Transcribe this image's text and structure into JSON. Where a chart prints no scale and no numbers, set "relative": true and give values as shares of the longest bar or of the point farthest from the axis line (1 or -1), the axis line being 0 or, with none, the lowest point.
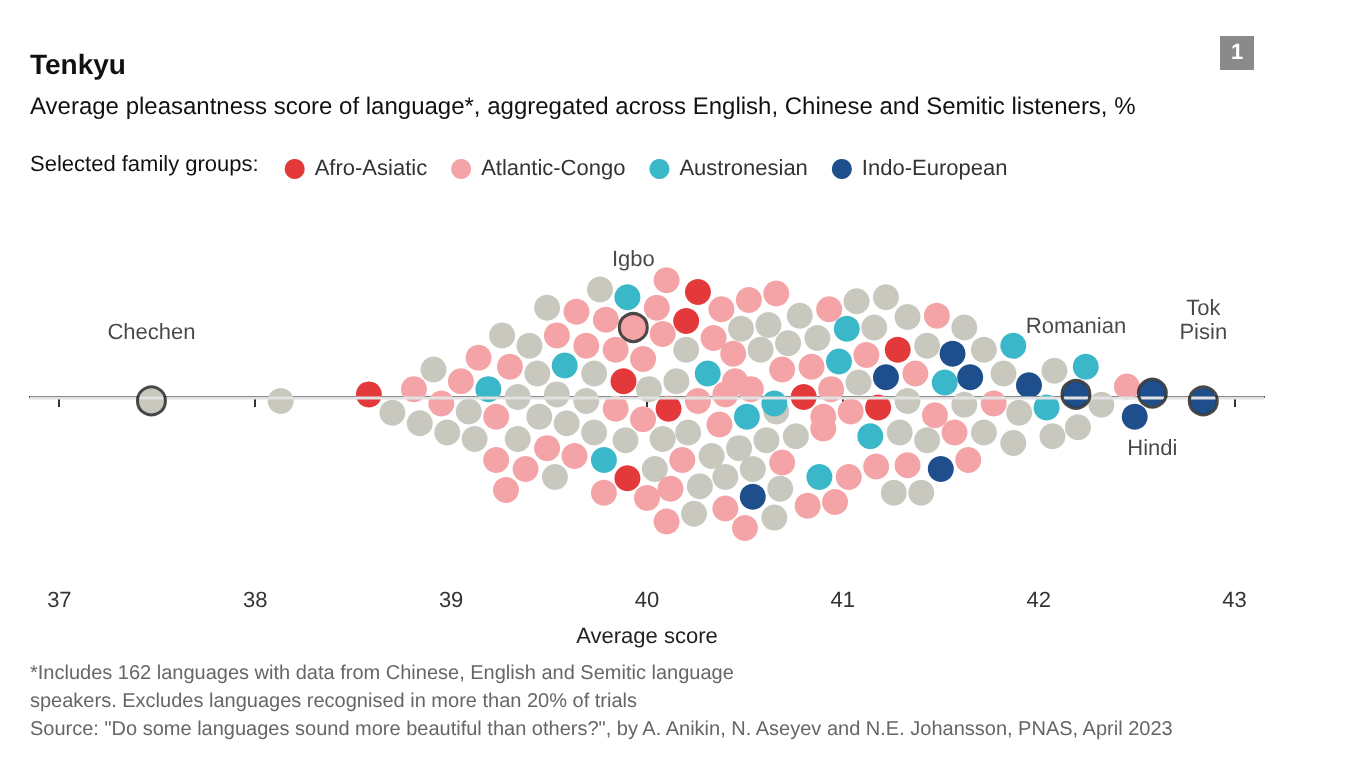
{
  "chart_data": {
    "type": "scatter",
    "title": "Tenkyu",
    "subtitle": "Average pleasantness score of language*, aggregated across English, Chinese and Semitic listeners, %",
    "legend_title": "Selected family groups:",
    "xlabel": "Average score",
    "relative": true,
    "marker": "circle",
    "legend": "top left",
    "grid": false,
    "xlim": [
      36.85,
      43.15
    ],
    "xticks": [
      37,
      38,
      39,
      40,
      41,
      42,
      43
    ],
    "ref_lines": [
      {
        "axis": "y",
        "value": 0,
        "color": "#e2e2e2"
      }
    ],
    "series": [
      {
        "color": "#c9c8bf",
        "x": [
          37.47,
          38.13,
          39.76,
          39.49,
          39.26,
          39.4,
          38.91,
          39.44,
          39.73,
          40.01,
          39.34,
          39.54,
          39.69,
          38.7,
          39.09,
          39.45,
          39.59,
          39.73,
          39.89,
          40.08,
          38.84,
          38.98,
          39.12,
          39.34,
          40.04,
          39.53,
          40.48,
          40.62,
          40.78,
          41.07,
          41.22,
          40.2,
          40.58,
          40.72,
          40.87,
          41.16,
          41.33,
          41.62,
          40.15,
          41.43,
          41.08,
          40.66,
          41.33,
          41.62,
          40.21,
          40.33,
          40.47,
          40.61,
          40.76,
          41.29,
          41.43,
          40.27,
          40.4,
          40.54,
          40.24,
          40.68,
          41.26,
          41.4,
          40.65,
          41.72,
          41.82,
          42.08,
          41.9,
          42.32,
          42.2,
          42.07,
          41.87,
          41.72
        ],
        "values": [
          -0.03,
          -0.03,
          0.82,
          0.68,
          0.47,
          0.39,
          0.21,
          0.18,
          0.18,
          0.06,
          0,
          0.02,
          -0.03,
          -0.12,
          -0.11,
          -0.15,
          -0.2,
          -0.27,
          -0.33,
          -0.32,
          -0.2,
          -0.27,
          -0.32,
          -0.32,
          -0.55,
          -0.61,
          0.52,
          0.55,
          0.62,
          0.73,
          0.76,
          0.36,
          0.36,
          0.41,
          0.45,
          0.53,
          0.61,
          0.53,
          0.12,
          0.39,
          0.11,
          -0.11,
          -0.03,
          -0.06,
          -0.27,
          -0.45,
          -0.39,
          -0.33,
          -0.3,
          -0.27,
          -0.33,
          -0.68,
          -0.61,
          -0.55,
          -0.89,
          -0.7,
          -0.73,
          -0.73,
          -0.92,
          0.36,
          0.18,
          0.2,
          -0.12,
          -0.06,
          -0.23,
          -0.3,
          -0.35,
          -0.27
        ]
      },
      {
        "name": "Afro-Asiatic",
        "color": "#e3393b",
        "x": [
          38.58,
          39.88,
          40.11,
          39.9,
          40.26,
          40.2,
          41.28,
          40.8,
          41.18
        ],
        "values": [
          0.02,
          0.12,
          -0.09,
          -0.62,
          0.8,
          0.58,
          0.36,
          0,
          -0.08
        ]
      },
      {
        "name": "Atlantic-Congo",
        "color": "#f4a3a6",
        "x": [
          40.1,
          39.64,
          39.79,
          39.93,
          40.05,
          40.08,
          39.54,
          39.69,
          39.84,
          39.98,
          39.14,
          39.3,
          38.81,
          39.05,
          39.84,
          39.98,
          38.95,
          39.23,
          39.49,
          39.63,
          39.23,
          39.38,
          39.78,
          40.0,
          40.1,
          39.28,
          40.38,
          40.52,
          40.66,
          40.34,
          40.93,
          40.44,
          41.48,
          40.45,
          40.69,
          40.84,
          41.12,
          40.26,
          40.4,
          40.53,
          40.94,
          41.37,
          40.37,
          40.9,
          41.04,
          41.47,
          40.18,
          40.9,
          41.57,
          40.12,
          40.69,
          41.03,
          41.17,
          41.33,
          41.64,
          40.4,
          40.82,
          40.96,
          40.5,
          41.77,
          42.45
        ],
        "values": [
          0.89,
          0.65,
          0.59,
          0.53,
          0.68,
          0.48,
          0.47,
          0.39,
          0.36,
          0.29,
          0.3,
          0.23,
          0.06,
          0.12,
          -0.09,
          -0.17,
          -0.05,
          -0.15,
          -0.39,
          -0.45,
          -0.48,
          -0.55,
          -0.73,
          -0.77,
          -0.95,
          -0.71,
          0.67,
          0.74,
          0.79,
          0.45,
          0.67,
          0.33,
          0.62,
          0.12,
          0.21,
          0.23,
          0.32,
          -0.03,
          0.02,
          0.06,
          0.06,
          0.18,
          -0.21,
          -0.15,
          -0.11,
          -0.14,
          -0.48,
          -0.24,
          -0.27,
          -0.7,
          -0.5,
          -0.61,
          -0.53,
          -0.52,
          -0.48,
          -0.85,
          -0.83,
          -0.8,
          -1.0,
          -0.05,
          0.08
        ]
      },
      {
        "name": "Austronesian",
        "color": "#3ab7c8",
        "x": [
          39.9,
          39.58,
          39.19,
          39.78,
          41.02,
          40.31,
          40.98,
          40.65,
          40.51,
          41.14,
          40.88,
          41.52,
          41.87,
          42.24,
          42.04
        ],
        "values": [
          0.76,
          0.24,
          0.06,
          -0.48,
          0.52,
          0.18,
          0.27,
          -0.05,
          -0.15,
          -0.3,
          -0.61,
          0.11,
          0.39,
          0.23,
          -0.08
        ]
      },
      {
        "name": "Indo-European",
        "color": "#1f4e8c",
        "x": [
          41.56,
          41.22,
          41.65,
          41.5,
          40.54,
          41.95,
          42.19,
          42.58,
          42.49,
          42.84
        ],
        "values": [
          0.33,
          0.15,
          0.15,
          -0.55,
          -0.76,
          0.09,
          0.02,
          0.03,
          -0.15,
          -0.03
        ]
      }
    ],
    "annotations": [
      {
        "text": "Chechen",
        "x": 37.47,
        "y": -0.03
      },
      {
        "text": "Igbo",
        "x": 39.93,
        "y": 0.53
      },
      {
        "text": "Romanian",
        "x": 42.19,
        "y": 0.02
      },
      {
        "text": "Hindi",
        "x": 42.58,
        "y": 0.03
      },
      {
        "text": "Tok\nPisin",
        "x": 42.84,
        "y": -0.03
      },
      "1",
      "*Includes 162 languages with data from Chinese, English and Semitic language speakers. Excludes languages recognised in more than 20% of trials",
      "Source: \"Do some languages sound more beautiful than others?\", by A. Anikin, N. Aseyev and N.E. Johansson, PNAS, April 2023"
    ]
  }
}
